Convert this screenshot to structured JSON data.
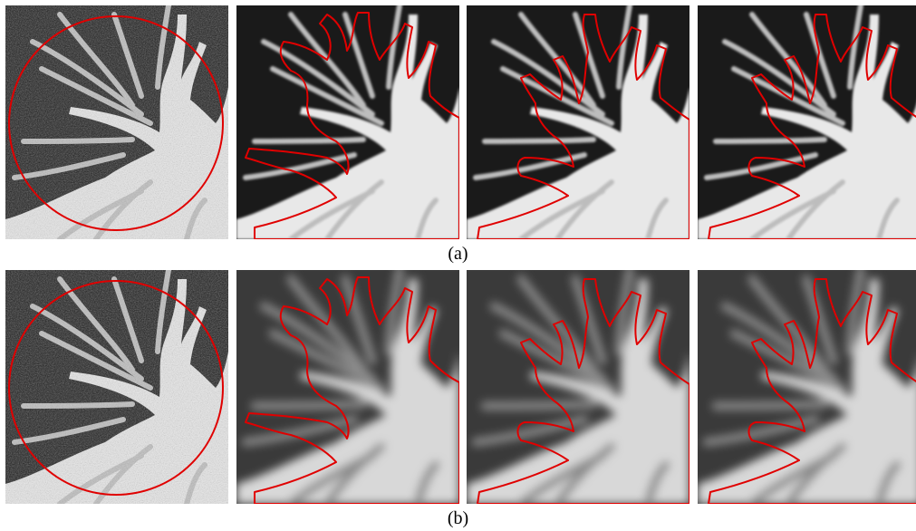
{
  "figure": {
    "rows": [
      {
        "caption": "(a)",
        "panels": [
          {
            "kind": "noisy-input-with-circle-roi",
            "background": "noisy",
            "contour": "circle"
          },
          {
            "kind": "segmentation-result",
            "background": "smooth",
            "contour": "segment-1"
          },
          {
            "kind": "segmentation-result",
            "background": "smooth",
            "contour": "segment-2"
          },
          {
            "kind": "segmentation-result",
            "background": "smooth",
            "contour": "segment-3"
          }
        ]
      },
      {
        "caption": "(b)",
        "panels": [
          {
            "kind": "noisy-input-with-circle-roi",
            "background": "noisy",
            "contour": "circle"
          },
          {
            "kind": "segmentation-result",
            "background": "blurred",
            "contour": "segment-1"
          },
          {
            "kind": "segmentation-result",
            "background": "blurred",
            "contour": "segment-2"
          },
          {
            "kind": "segmentation-result",
            "background": "blurred",
            "contour": "segment-3"
          }
        ]
      }
    ],
    "contour_color": "#e00000",
    "tissue_color": "#e8e8e8",
    "background_color": "#1a1a1a"
  }
}
